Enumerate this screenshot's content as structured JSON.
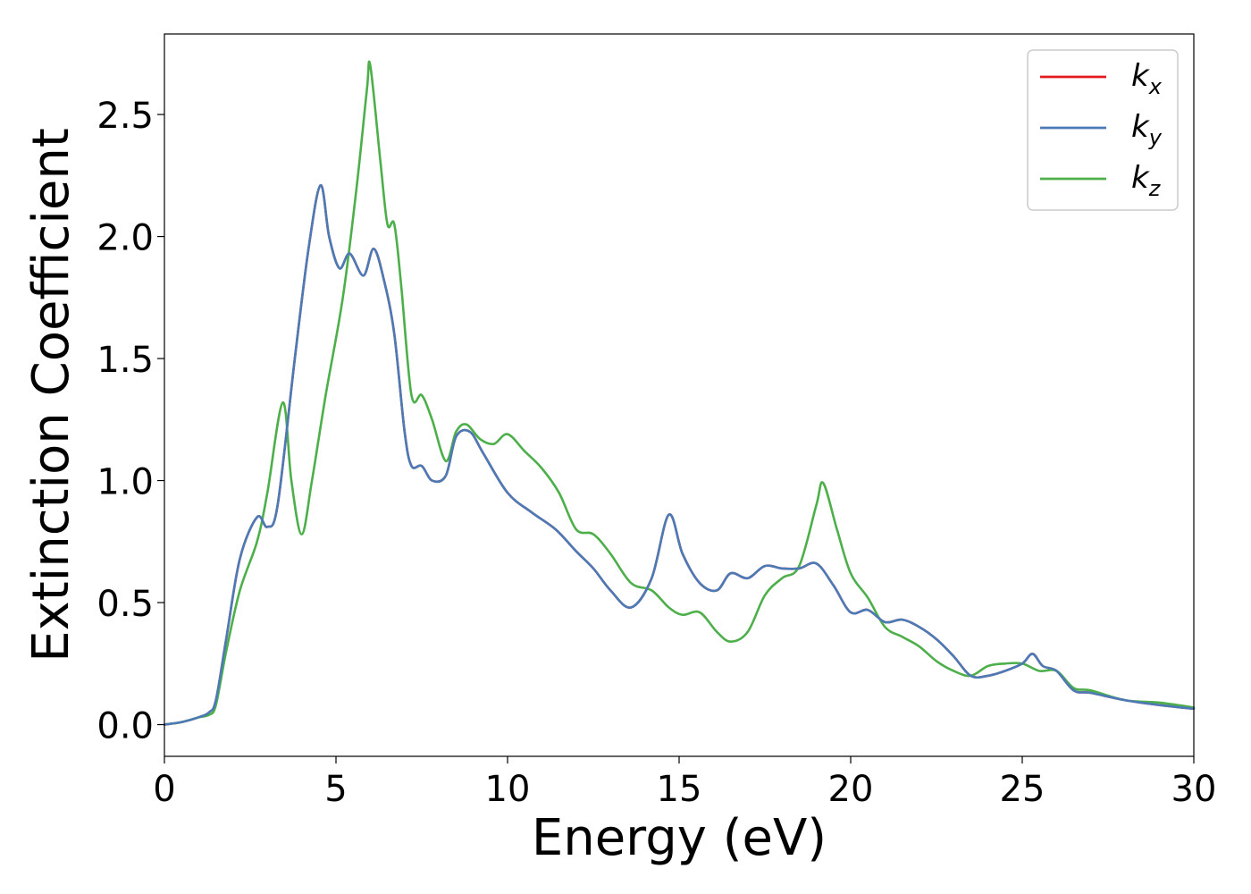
{
  "chart_data": {
    "type": "line",
    "xlabel": "Energy (eV)",
    "ylabel": "Extinction Coefficient",
    "xlim": [
      0,
      30
    ],
    "ylim": [
      -0.13,
      2.83
    ],
    "xticks": [
      0,
      5,
      10,
      15,
      20,
      25,
      30
    ],
    "xtick_labels": [
      "0",
      "5",
      "10",
      "15",
      "20",
      "25",
      "30"
    ],
    "yticks": [
      0.0,
      0.5,
      1.0,
      1.5,
      2.0,
      2.5
    ],
    "ytick_labels": [
      "0.0",
      "0.5",
      "1.0",
      "1.5",
      "2.0",
      "2.5"
    ],
    "grid": false,
    "legend_position": "top-right",
    "series": [
      {
        "name": "k_x",
        "label_main": "k",
        "label_sub": "x",
        "color": "#e41a1c",
        "x": [
          0,
          0.5,
          1,
          1.3,
          1.5,
          1.8,
          2.2,
          2.7,
          3,
          3.3,
          3.8,
          4.2,
          4.55,
          4.8,
          5.1,
          5.4,
          5.8,
          6.1,
          6.4,
          6.7,
          7,
          7.2,
          7.5,
          7.8,
          8.2,
          8.5,
          8.9,
          9.3,
          10,
          10.7,
          11.4,
          12,
          12.5,
          13,
          13.6,
          14.2,
          14.7,
          15.1,
          15.6,
          16.1,
          16.5,
          17,
          17.5,
          18,
          18.5,
          19,
          19.5,
          20,
          20.5,
          21,
          21.5,
          22,
          22.5,
          23,
          23.5,
          24,
          24.5,
          25,
          25.3,
          25.6,
          26,
          26.5,
          27,
          28,
          29,
          30
        ],
        "y": [
          0.0,
          0.01,
          0.03,
          0.05,
          0.1,
          0.35,
          0.68,
          0.85,
          0.81,
          0.9,
          1.5,
          1.95,
          2.21,
          2.0,
          1.87,
          1.93,
          1.84,
          1.95,
          1.82,
          1.6,
          1.2,
          1.06,
          1.06,
          1.0,
          1.02,
          1.18,
          1.2,
          1.11,
          0.95,
          0.87,
          0.8,
          0.71,
          0.64,
          0.55,
          0.48,
          0.6,
          0.86,
          0.7,
          0.58,
          0.55,
          0.62,
          0.6,
          0.65,
          0.64,
          0.64,
          0.66,
          0.57,
          0.46,
          0.47,
          0.42,
          0.43,
          0.4,
          0.35,
          0.28,
          0.2,
          0.2,
          0.22,
          0.25,
          0.29,
          0.24,
          0.22,
          0.14,
          0.13,
          0.1,
          0.08,
          0.065
        ]
      },
      {
        "name": "k_y",
        "label_main": "k",
        "label_sub": "y",
        "color": "#4a7bb7",
        "x": [
          0,
          0.5,
          1,
          1.3,
          1.5,
          1.8,
          2.2,
          2.7,
          3,
          3.3,
          3.8,
          4.2,
          4.55,
          4.8,
          5.1,
          5.4,
          5.8,
          6.1,
          6.4,
          6.7,
          7,
          7.2,
          7.5,
          7.8,
          8.2,
          8.5,
          8.9,
          9.3,
          10,
          10.7,
          11.4,
          12,
          12.5,
          13,
          13.6,
          14.2,
          14.7,
          15.1,
          15.6,
          16.1,
          16.5,
          17,
          17.5,
          18,
          18.5,
          19,
          19.5,
          20,
          20.5,
          21,
          21.5,
          22,
          22.5,
          23,
          23.5,
          24,
          24.5,
          25,
          25.3,
          25.6,
          26,
          26.5,
          27,
          28,
          29,
          30
        ],
        "y": [
          0.0,
          0.01,
          0.03,
          0.05,
          0.1,
          0.35,
          0.68,
          0.85,
          0.81,
          0.9,
          1.5,
          1.95,
          2.21,
          2.0,
          1.87,
          1.93,
          1.84,
          1.95,
          1.82,
          1.6,
          1.2,
          1.06,
          1.06,
          1.0,
          1.02,
          1.18,
          1.2,
          1.11,
          0.95,
          0.87,
          0.8,
          0.71,
          0.64,
          0.55,
          0.48,
          0.6,
          0.86,
          0.7,
          0.58,
          0.55,
          0.62,
          0.6,
          0.65,
          0.64,
          0.64,
          0.66,
          0.57,
          0.46,
          0.47,
          0.42,
          0.43,
          0.4,
          0.35,
          0.28,
          0.2,
          0.2,
          0.22,
          0.25,
          0.29,
          0.24,
          0.22,
          0.14,
          0.13,
          0.1,
          0.08,
          0.065
        ]
      },
      {
        "name": "k_z",
        "label_main": "k",
        "label_sub": "z",
        "color": "#4daf4a",
        "x": [
          0,
          0.5,
          1,
          1.3,
          1.5,
          1.8,
          2.2,
          2.7,
          3,
          3.45,
          3.7,
          4.0,
          4.3,
          4.7,
          5.2,
          5.6,
          5.9,
          6.0,
          6.3,
          6.5,
          6.7,
          6.9,
          7.2,
          7.5,
          7.8,
          8.2,
          8.5,
          8.8,
          9.2,
          9.6,
          10,
          10.5,
          11,
          11.5,
          12,
          12.5,
          13,
          13.6,
          14.2,
          14.7,
          15.1,
          15.6,
          16.1,
          16.5,
          17,
          17.5,
          18,
          18.5,
          19,
          19.2,
          19.6,
          20,
          20.5,
          21,
          21.5,
          22,
          22.5,
          23,
          23.5,
          24,
          24.5,
          25,
          25.5,
          26,
          26.5,
          27,
          28,
          29,
          30
        ],
        "y": [
          0.0,
          0.01,
          0.03,
          0.04,
          0.08,
          0.3,
          0.55,
          0.75,
          0.95,
          1.32,
          1.0,
          0.78,
          1.0,
          1.35,
          1.75,
          2.2,
          2.6,
          2.7,
          2.3,
          2.05,
          2.05,
          1.8,
          1.35,
          1.35,
          1.25,
          1.08,
          1.2,
          1.23,
          1.17,
          1.15,
          1.19,
          1.12,
          1.05,
          0.95,
          0.8,
          0.78,
          0.7,
          0.58,
          0.55,
          0.48,
          0.45,
          0.46,
          0.38,
          0.34,
          0.38,
          0.53,
          0.6,
          0.65,
          0.9,
          0.99,
          0.8,
          0.62,
          0.52,
          0.4,
          0.36,
          0.32,
          0.26,
          0.22,
          0.2,
          0.24,
          0.25,
          0.25,
          0.22,
          0.22,
          0.15,
          0.14,
          0.1,
          0.09,
          0.07
        ]
      }
    ]
  }
}
